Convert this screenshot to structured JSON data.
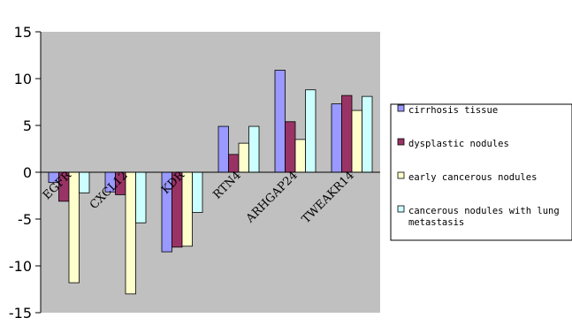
{
  "chart_data": {
    "type": "bar",
    "categories": [
      "EGFR",
      "CXCL12",
      "KDR",
      "RTN4",
      "ARHGAP24",
      "TWEAKR14"
    ],
    "series": [
      {
        "name": "cirrhosis tissue",
        "color": "#9999FF",
        "values": [
          -1.1,
          -2.1,
          -8.5,
          4.9,
          10.9,
          7.3
        ]
      },
      {
        "name": "dysplastic nodules",
        "color": "#993366",
        "values": [
          -3.1,
          -2.4,
          -8.0,
          1.9,
          5.4,
          8.2
        ]
      },
      {
        "name": "early cancerous nodules",
        "color": "#FFFFCC",
        "values": [
          -11.8,
          -13.0,
          -7.9,
          3.1,
          3.5,
          6.6
        ]
      },
      {
        "name": "cancerous nodules with lung metastasis",
        "color": "#CCFFFF",
        "values": [
          -2.2,
          -5.4,
          -4.3,
          4.9,
          8.8,
          8.1
        ]
      }
    ],
    "ylim": [
      -15,
      15
    ],
    "yticks": [
      15,
      10,
      5,
      0,
      -5,
      -10,
      -15
    ],
    "grid": false,
    "plot_background": "#C0C0C0",
    "legend_position": "right",
    "title": "",
    "xlabel": "",
    "ylabel": ""
  }
}
